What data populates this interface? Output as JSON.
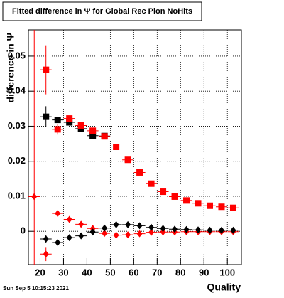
{
  "chart_data": {
    "type": "scatter",
    "title": "Fitted difference in  Ψ  for Global Rec Pion NoHits",
    "x_label": "Quality",
    "y_label": "difference in  Ψ",
    "timestamp": "Sun Sep  5 10:15:23 2021",
    "xlim": [
      15,
      106
    ],
    "ylim": [
      -0.0095,
      0.0575
    ],
    "xticks": [
      20,
      30,
      40,
      50,
      60,
      70,
      80,
      90,
      100
    ],
    "yticks": [
      0,
      0.01,
      0.02,
      0.03,
      0.04,
      0.05
    ],
    "grid": true,
    "series": [
      {
        "marker": "square",
        "color": "#000000",
        "x": [
          22.5,
          27.5,
          32.5,
          37.5,
          42.5,
          47.5
        ],
        "values": [
          0.0327,
          0.0318,
          0.0311,
          0.0293,
          0.0273,
          0.0272
        ],
        "errors": [
          0.003,
          0.0008,
          0.0006,
          0.0005,
          0.0005,
          0.0005
        ]
      },
      {
        "marker": "square",
        "color": "#ff0000",
        "x": [
          22.5,
          27.5,
          32.5,
          37.5,
          42.5,
          47.5,
          52.5,
          57.5,
          62.5,
          67.5,
          72.5,
          77.5,
          82.5,
          87.5,
          92.5,
          97.5,
          102.5
        ],
        "values": [
          0.0461,
          0.0291,
          0.0322,
          0.0302,
          0.0287,
          0.0271,
          0.0241,
          0.0204,
          0.0168,
          0.0136,
          0.0113,
          0.0099,
          0.0088,
          0.008,
          0.0073,
          0.007,
          0.0067
        ],
        "errors": [
          0.007,
          0.0015,
          0.0008,
          0.0006,
          0.0005,
          0.0005,
          0.0004,
          0.0004,
          0.0003,
          0.0003,
          0.0003,
          0.0003,
          0.0002,
          0.0002,
          0.0002,
          0.0002,
          0.0002
        ]
      },
      {
        "marker": "diamond",
        "color": "#ff0000",
        "x": [
          17.5,
          22.5,
          27.5,
          32.5,
          37.5,
          42.5,
          47.5,
          52.5,
          57.5,
          62.5,
          67.5,
          72.5,
          77.5,
          82.5,
          87.5,
          92.5,
          97.5,
          102.5
        ],
        "values": [
          0.0099,
          -0.0065,
          0.0051,
          0.0034,
          0.002,
          0.0008,
          -0.0006,
          -0.0011,
          -0.001,
          -0.0007,
          -0.0003,
          -0.0002,
          -0.0002,
          -0.0001,
          -0.0001,
          -0.0001,
          -0.0001,
          -0.0001
        ],
        "errors": [
          0.07,
          0.002,
          0.0008,
          0.0005,
          0.0004,
          0.0003,
          0.0003,
          0.0003,
          0.0002,
          0.0002,
          0.0002,
          0.0002,
          0.0002,
          0.0001,
          0.0001,
          0.0001,
          0.0001,
          0.0001
        ]
      },
      {
        "marker": "diamond",
        "color": "#000000",
        "x": [
          22.5,
          27.5,
          32.5,
          37.5,
          42.5,
          47.5,
          52.5,
          57.5,
          62.5,
          67.5,
          72.5,
          77.5,
          82.5,
          87.5,
          92.5,
          97.5,
          102.5
        ],
        "values": [
          -0.0022,
          -0.0032,
          -0.0018,
          -0.0013,
          -0.0002,
          0.0009,
          0.0019,
          0.0019,
          0.0016,
          0.0011,
          0.0008,
          0.0006,
          0.0005,
          0.0004,
          0.0003,
          0.0003,
          0.0003
        ],
        "errors": [
          0.0012,
          0.0006,
          0.0004,
          0.0003,
          0.0003,
          0.0002,
          0.0002,
          0.0002,
          0.0002,
          0.0002,
          0.0001,
          0.0001,
          0.0001,
          0.0001,
          0.0001,
          0.0001,
          0.0001
        ]
      }
    ]
  }
}
